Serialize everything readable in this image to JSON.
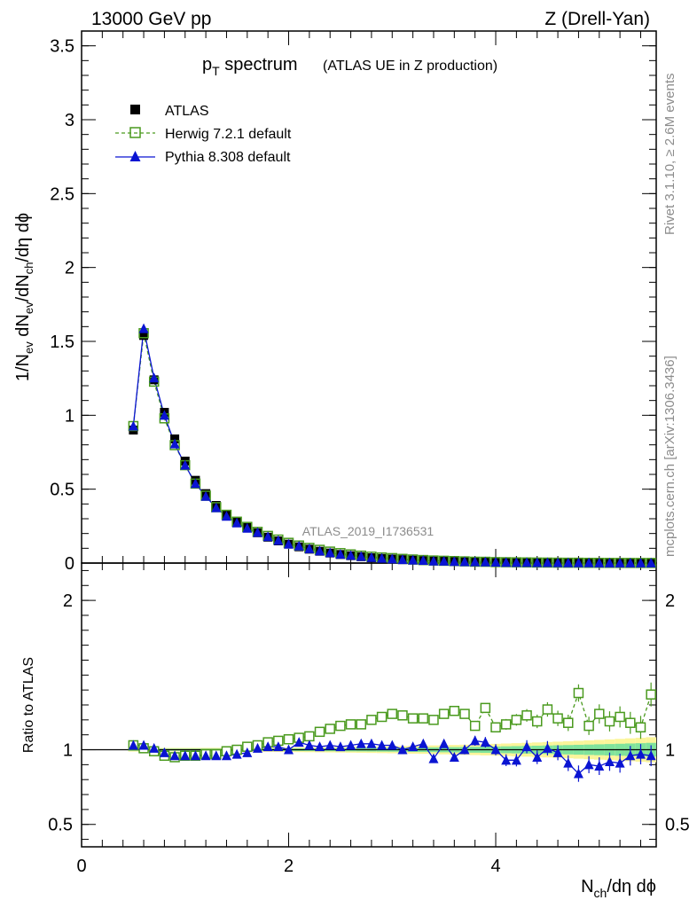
{
  "header": {
    "left": "13000 GeV pp",
    "right": "Z (Drell-Yan)"
  },
  "title": {
    "main_p": "p",
    "main_sub": "T",
    "main_rest": " spectrum",
    "note": "(ATLAS UE in Z production)"
  },
  "side_text": {
    "rivet": "Rivet 3.1.10, ≥ 2.6M events",
    "mcplots": "mcplots.cern.ch [arXiv:1306.3436]"
  },
  "watermark": "ATLAS_2019_I1736531",
  "labels": {
    "ratio_ylabel": "Ratio to ATLAS",
    "xlabel_n": "N",
    "xlabel_sub": "ch",
    "xlabel_rest": "/dη dϕ",
    "ylabel": "1/N_ev dN_ev/dN_ch/dη dϕ"
  },
  "colors": {
    "data": "#000000",
    "herwig": "#4a9a1e",
    "pythia": "#0a14d2",
    "band_inner": "#7fe39c",
    "band_outer": "#fbf59a"
  },
  "chart_data": {
    "type": "line",
    "x": [
      0.5,
      0.6,
      0.7,
      0.8,
      0.9,
      1.0,
      1.1,
      1.2,
      1.3,
      1.4,
      1.5,
      1.6,
      1.7,
      1.8,
      1.9,
      2.0,
      2.1,
      2.2,
      2.3,
      2.4,
      2.5,
      2.6,
      2.7,
      2.8,
      2.9,
      3.0,
      3.1,
      3.2,
      3.3,
      3.4,
      3.5,
      3.6,
      3.7,
      3.8,
      3.9,
      4.0,
      4.1,
      4.2,
      4.3,
      4.4,
      4.5,
      4.6,
      4.7,
      4.8,
      4.9,
      5.0,
      5.1,
      5.2,
      5.3,
      5.4,
      5.5
    ],
    "xlim": [
      0,
      5.55
    ],
    "xticks": [
      0,
      2,
      4
    ],
    "main_ylim": [
      0,
      3.6
    ],
    "main_yticks": [
      0,
      0.5,
      1,
      1.5,
      2,
      2.5,
      3,
      3.5
    ],
    "ratio_ylim": [
      0.35,
      2.25
    ],
    "ratio_yticks": [
      0.5,
      1,
      2
    ],
    "series": [
      {
        "name": "ATLAS",
        "values": [
          0.9,
          1.54,
          1.24,
          1.02,
          0.84,
          0.69,
          0.56,
          0.47,
          0.39,
          0.33,
          0.28,
          0.24,
          0.205,
          0.175,
          0.15,
          0.128,
          0.11,
          0.094,
          0.08,
          0.068,
          0.058,
          0.05,
          0.043,
          0.036,
          0.031,
          0.027,
          0.023,
          0.02,
          0.017,
          0.0145,
          0.0125,
          0.0107,
          0.0092,
          0.0079,
          0.0068,
          0.0058,
          0.005,
          0.0043,
          0.0037,
          0.0032,
          0.0027,
          0.0023,
          0.002,
          0.0017,
          0.00145,
          0.00125,
          0.00107,
          0.00092,
          0.00079,
          0.00068,
          0.00058
        ]
      },
      {
        "name": "Herwig 7.2.1 default",
        "ratio": [
          1.03,
          1.01,
          0.99,
          0.96,
          0.95,
          0.96,
          0.96,
          0.97,
          0.97,
          0.99,
          1.0,
          1.02,
          1.03,
          1.05,
          1.06,
          1.07,
          1.08,
          1.09,
          1.12,
          1.14,
          1.16,
          1.17,
          1.17,
          1.2,
          1.22,
          1.24,
          1.23,
          1.21,
          1.21,
          1.2,
          1.24,
          1.26,
          1.24,
          1.16,
          1.28,
          1.15,
          1.17,
          1.2,
          1.23,
          1.19,
          1.27,
          1.21,
          1.18,
          1.38,
          1.16,
          1.24,
          1.19,
          1.22,
          1.18,
          1.15,
          1.37
        ]
      },
      {
        "name": "Pythia 8.308 default",
        "ratio": [
          1.03,
          1.03,
          1.01,
          0.98,
          0.96,
          0.96,
          0.96,
          0.96,
          0.96,
          0.96,
          0.97,
          0.98,
          1.01,
          1.02,
          1.02,
          1.0,
          1.05,
          1.03,
          1.02,
          1.03,
          1.02,
          1.03,
          1.04,
          1.04,
          1.03,
          1.03,
          1.0,
          1.02,
          1.04,
          0.94,
          1.04,
          0.95,
          1.0,
          1.06,
          1.05,
          1.0,
          0.93,
          0.93,
          1.02,
          0.95,
          1.01,
          0.98,
          0.91,
          0.84,
          0.9,
          0.89,
          0.92,
          0.91,
          0.96,
          0.97,
          0.96
        ]
      }
    ]
  }
}
